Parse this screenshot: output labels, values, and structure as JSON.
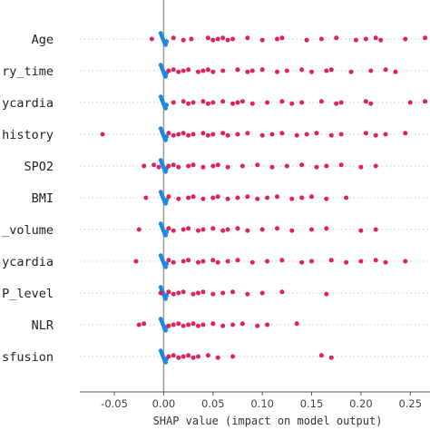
{
  "chart_data": {
    "type": "scatter",
    "xlabel": "SHAP value (impact on model output)",
    "xlim": [
      -0.085,
      0.27
    ],
    "x_ticks": [
      -0.05,
      0.0,
      0.05,
      0.1,
      0.15,
      0.2,
      0.25
    ],
    "x_tick_labels": [
      "-0.05",
      "0.00",
      "0.05",
      "0.10",
      "0.15",
      "0.20",
      "0.25"
    ],
    "grid": "horizontal dotted",
    "colors": {
      "high": "#e0215a",
      "low": "#1e88e5",
      "zero_line": "#999999"
    },
    "series": [
      {
        "name": "Age",
        "high": [
          -0.012,
          0.01,
          0.02,
          0.028,
          0.045,
          0.05,
          0.055,
          0.06,
          0.065,
          0.07,
          0.085,
          0.1,
          0.115,
          0.12,
          0.145,
          0.16,
          0.175,
          0.195,
          0.205,
          0.215,
          0.22,
          0.245,
          0.265
        ]
      },
      {
        "name": "ry_time",
        "high": [
          0.005,
          0.01,
          0.015,
          0.02,
          0.025,
          0.035,
          0.04,
          0.045,
          0.05,
          0.06,
          0.075,
          0.085,
          0.09,
          0.1,
          0.115,
          0.125,
          0.14,
          0.15,
          0.165,
          0.17,
          0.19,
          0.21,
          0.225,
          0.235
        ]
      },
      {
        "name": "ycardia",
        "high": [
          0.01,
          0.02,
          0.025,
          0.03,
          0.04,
          0.045,
          0.05,
          0.06,
          0.07,
          0.075,
          0.08,
          0.09,
          0.105,
          0.12,
          0.13,
          0.14,
          0.16,
          0.175,
          0.18,
          0.205,
          0.21,
          0.25,
          0.265
        ]
      },
      {
        "name": "history",
        "high": [
          -0.062,
          0.005,
          0.01,
          0.015,
          0.02,
          0.025,
          0.03,
          0.04,
          0.045,
          0.05,
          0.06,
          0.065,
          0.075,
          0.085,
          0.1,
          0.11,
          0.12,
          0.135,
          0.145,
          0.155,
          0.17,
          0.18,
          0.205,
          0.215,
          0.225,
          0.245
        ]
      },
      {
        "name": "SPO2",
        "high": [
          -0.02,
          -0.01,
          -0.005,
          0.005,
          0.01,
          0.015,
          0.025,
          0.03,
          0.04,
          0.05,
          0.055,
          0.065,
          0.08,
          0.095,
          0.11,
          0.125,
          0.14,
          0.155,
          0.165,
          0.18,
          0.2,
          0.215
        ]
      },
      {
        "name": "BMI",
        "high": [
          -0.018,
          0.005,
          0.015,
          0.025,
          0.03,
          0.04,
          0.05,
          0.055,
          0.065,
          0.075,
          0.085,
          0.095,
          0.105,
          0.115,
          0.13,
          0.14,
          0.15,
          0.165,
          0.185
        ]
      },
      {
        "name": "_volume",
        "high": [
          -0.025,
          0.005,
          0.01,
          0.02,
          0.025,
          0.035,
          0.04,
          0.05,
          0.06,
          0.065,
          0.075,
          0.085,
          0.1,
          0.115,
          0.13,
          0.15,
          0.165,
          0.2,
          0.215
        ]
      },
      {
        "name": "ycardia",
        "high": [
          -0.028,
          0.005,
          0.01,
          0.02,
          0.025,
          0.035,
          0.04,
          0.05,
          0.055,
          0.065,
          0.075,
          0.09,
          0.105,
          0.12,
          0.14,
          0.15,
          0.17,
          0.185,
          0.2,
          0.215,
          0.225,
          0.245
        ]
      },
      {
        "name": "P_level",
        "high": [
          -0.003,
          0.005,
          0.01,
          0.015,
          0.02,
          0.03,
          0.035,
          0.04,
          0.05,
          0.06,
          0.07,
          0.085,
          0.1,
          0.12,
          0.165
        ]
      },
      {
        "name": "NLR",
        "high": [
          -0.025,
          -0.02,
          0.005,
          0.01,
          0.015,
          0.02,
          0.025,
          0.03,
          0.035,
          0.04,
          0.05,
          0.06,
          0.07,
          0.08,
          0.095,
          0.105,
          0.135
        ]
      },
      {
        "name": "sfusion",
        "high": [
          0.005,
          0.01,
          0.015,
          0.02,
          0.025,
          0.03,
          0.035,
          0.045,
          0.055,
          0.07,
          0.16,
          0.17
        ]
      }
    ]
  }
}
